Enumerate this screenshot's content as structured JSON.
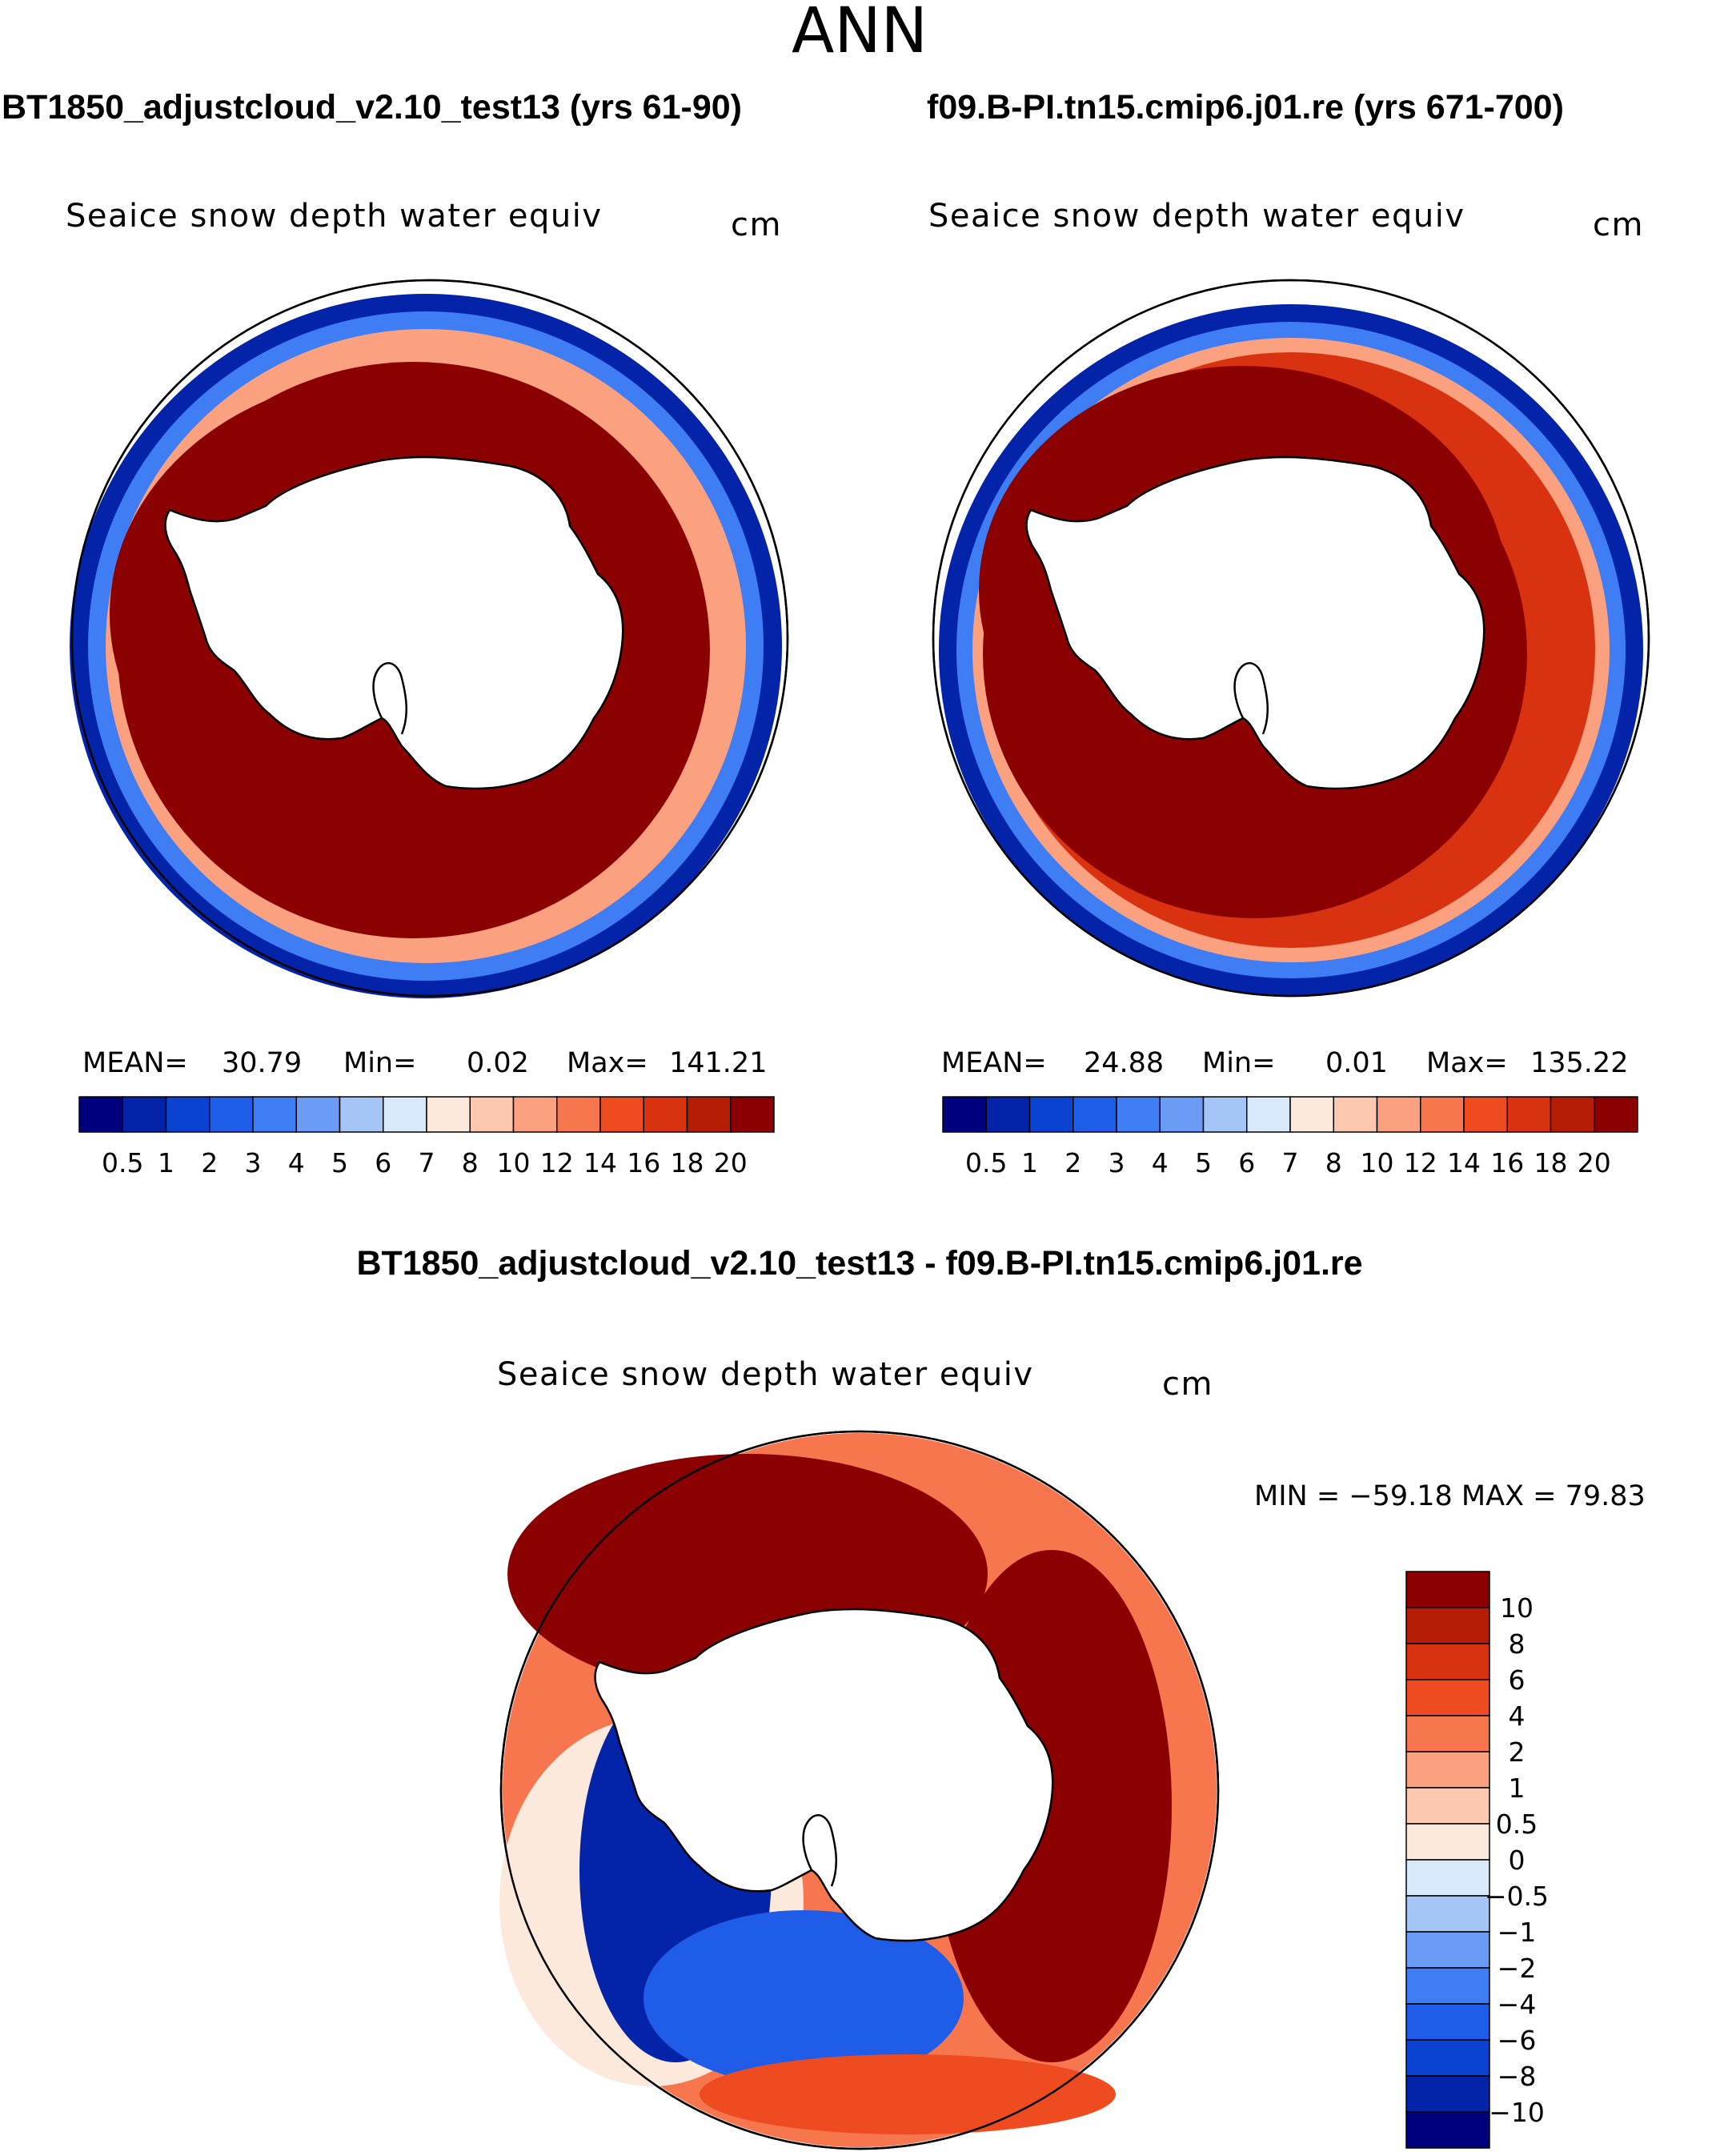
{
  "figure": {
    "title": "ANN",
    "diff_title": "BT1850_adjustcloud_v2.10_test13 - f09.B-PI.tn15.cmip6.j01.re"
  },
  "panels": [
    {
      "case_title": "BT1850_adjustcloud_v2.10_test13 (yrs 61-90)",
      "variable": "Seaice snow depth water equiv",
      "units": "cm",
      "stats": {
        "mean_label": "MEAN=",
        "mean": "30.79",
        "min_label": "Min=",
        "min": "0.02",
        "max_label": "Max=",
        "max": "141.21"
      }
    },
    {
      "case_title": "f09.B-PI.tn15.cmip6.j01.re (yrs 671-700)",
      "variable": "Seaice snow depth water equiv",
      "units": "cm",
      "stats": {
        "mean_label": "MEAN=",
        "mean": "24.88",
        "min_label": "Min=",
        "min": "0.01",
        "max_label": "Max=",
        "max": "135.22"
      }
    }
  ],
  "diff_panel": {
    "variable": "Seaice snow depth water equiv",
    "units": "cm",
    "minmax": "MIN = −59.18 MAX =   79.83"
  },
  "colors": {
    "abs_scale": [
      "#00007f",
      "#0323a8",
      "#0a43d1",
      "#1f5ce8",
      "#3e7df3",
      "#6a9cf5",
      "#a6c5f7",
      "#d8e9fb",
      "#fde9dc",
      "#fdc8b0",
      "#fca17f",
      "#f7764e",
      "#ee4b21",
      "#d93210",
      "#b51d06",
      "#8b0000"
    ],
    "diff_scale": [
      "#00007f",
      "#0323a8",
      "#0a43d1",
      "#1f5ce8",
      "#3e7df3",
      "#6a9cf5",
      "#a6c5f7",
      "#d8e9fb",
      "#fde9dc",
      "#fdc8b0",
      "#fca17f",
      "#f7764e",
      "#ee4b21",
      "#d93210",
      "#b51d06",
      "#8b0000"
    ],
    "ocean": "#ffffff",
    "land": "#ffffff"
  },
  "chart_data": [
    {
      "type": "heatmap",
      "projection": "south polar stereographic",
      "title": "BT1850_adjustcloud_v2.10_test13 (yrs 61-90)",
      "variable": "Seaice snow depth water equiv",
      "units": "cm",
      "mean": 30.79,
      "min": 0.02,
      "max": 141.21,
      "colorbar_ticks": [
        "0.5",
        "1",
        "2",
        "3",
        "4",
        "5",
        "6",
        "7",
        "8",
        "10",
        "12",
        "14",
        "16",
        "18",
        "20"
      ]
    },
    {
      "type": "heatmap",
      "projection": "south polar stereographic",
      "title": "f09.B-PI.tn15.cmip6.j01.re (yrs 671-700)",
      "variable": "Seaice snow depth water equiv",
      "units": "cm",
      "mean": 24.88,
      "min": 0.01,
      "max": 135.22,
      "colorbar_ticks": [
        "0.5",
        "1",
        "2",
        "3",
        "4",
        "5",
        "6",
        "7",
        "8",
        "10",
        "12",
        "14",
        "16",
        "18",
        "20"
      ]
    },
    {
      "type": "heatmap",
      "projection": "south polar stereographic",
      "title": "BT1850_adjustcloud_v2.10_test13 - f09.B-PI.tn15.cmip6.j01.re",
      "variable": "Seaice snow depth water equiv",
      "units": "cm",
      "min": -59.18,
      "max": 79.83,
      "colorbar_ticks": [
        "10",
        "8",
        "6",
        "4",
        "2",
        "1",
        "0.5",
        "0",
        "−0.5",
        "−1",
        "−2",
        "−4",
        "−6",
        "−8",
        "−10"
      ]
    }
  ]
}
